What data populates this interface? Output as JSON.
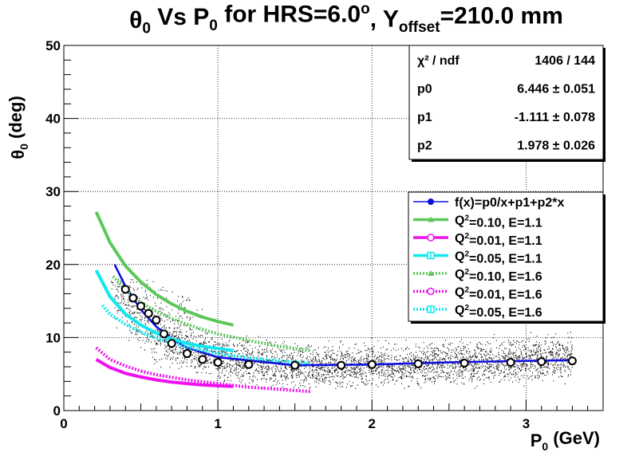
{
  "chart_data": {
    "type": "scatter",
    "title": {
      "parts": [
        "θ",
        "0",
        " Vs P",
        "0",
        " for HRS=6.0",
        "o",
        ", Y",
        "offset",
        "=210.0 mm"
      ]
    },
    "xlabel": {
      "parts": [
        "P",
        "0",
        " (GeV)"
      ]
    },
    "ylabel": {
      "parts": [
        "θ",
        "0",
        " (deg)"
      ]
    },
    "xlim": [
      0,
      3.5
    ],
    "ylim": [
      0,
      50
    ],
    "xticks": [
      "0",
      "1",
      "2",
      "3"
    ],
    "yticks": [
      "0",
      "10",
      "20",
      "30",
      "40",
      "50"
    ],
    "grid": true,
    "stats": {
      "rows": [
        {
          "label": "χ² / ndf",
          "value": "1406 / 144"
        },
        {
          "label": "p0",
          "value": "6.446 ± 0.051"
        },
        {
          "label": "p1",
          "value": "-1.111 ± 0.078"
        },
        {
          "label": "p2",
          "value": "1.978 ± 0.026"
        }
      ]
    },
    "fit": {
      "p0": 6.446,
      "p1": -1.111,
      "p2": 1.978
    },
    "scatter_region": {
      "x_start": 0.3,
      "x_end": 3.3
    },
    "profile_points": {
      "x": [
        0.4,
        0.45,
        0.5,
        0.55,
        0.6,
        0.65,
        0.7,
        0.8,
        0.9,
        1.0,
        1.2,
        1.5,
        1.8,
        2.0,
        2.3,
        2.6,
        2.9,
        3.1,
        3.3
      ],
      "y": [
        16.6,
        15.4,
        14.3,
        13.3,
        12.4,
        10.5,
        9.2,
        7.8,
        7.0,
        6.6,
        6.3,
        6.2,
        6.2,
        6.3,
        6.4,
        6.5,
        6.6,
        6.7,
        6.8
      ]
    },
    "legend": [
      {
        "label": "f(x)=p0/x+p1+p2*x",
        "color": "#1010e0",
        "marker": "circle-filled",
        "dashed": false
      },
      {
        "label": "Q²=0.10, E=1.1",
        "color": "#5cc85c",
        "marker": "triangle",
        "dashed": false
      },
      {
        "label": "Q²=0.01, E=1.1",
        "color": "#ee10ee",
        "marker": "circle-open",
        "dashed": false
      },
      {
        "label": "Q²=0.05, E=1.1",
        "color": "#10e8f0",
        "marker": "plus-square",
        "dashed": false
      },
      {
        "label": "Q²=0.10, E=1.6",
        "color": "#5cc85c",
        "marker": "triangle",
        "dashed": true
      },
      {
        "label": "Q²=0.01, E=1.6",
        "color": "#ee10ee",
        "marker": "circle-open",
        "dashed": true
      },
      {
        "label": "Q²=0.05, E=1.6",
        "color": "#10e8f0",
        "marker": "plus-square",
        "dashed": true
      }
    ],
    "series": [
      {
        "name": "f(x)=p0/x+p1+p2*x",
        "color": "#1010e0",
        "dashed": false,
        "x": [
          0.33,
          0.4,
          0.5,
          0.6,
          0.7,
          0.8,
          1.0,
          1.5,
          2.0,
          2.5,
          3.0,
          3.3
        ],
        "y": [
          20.0,
          17.0,
          13.8,
          11.5,
          9.8,
          8.6,
          7.3,
          6.2,
          6.3,
          6.6,
          6.8,
          6.9
        ]
      },
      {
        "name": "Q²=0.10, E=1.1",
        "color": "#5cc85c",
        "dashed": false,
        "x": [
          0.21,
          0.3,
          0.4,
          0.5,
          0.6,
          0.7,
          0.8,
          0.9,
          1.0,
          1.1
        ],
        "y": [
          27.2,
          23.0,
          19.8,
          17.6,
          15.9,
          14.6,
          13.6,
          12.8,
          12.2,
          11.7
        ]
      },
      {
        "name": "Q²=0.01, E=1.1",
        "color": "#ee10ee",
        "dashed": false,
        "x": [
          0.21,
          0.3,
          0.4,
          0.5,
          0.6,
          0.7,
          0.8,
          0.9,
          1.0,
          1.1
        ],
        "y": [
          7.0,
          5.9,
          5.1,
          4.6,
          4.2,
          3.9,
          3.7,
          3.5,
          3.4,
          3.3
        ]
      },
      {
        "name": "Q²=0.05, E=1.1",
        "color": "#10e8f0",
        "dashed": false,
        "x": [
          0.21,
          0.3,
          0.4,
          0.5,
          0.6,
          0.7,
          0.8,
          0.9,
          1.0,
          1.1
        ],
        "y": [
          19.2,
          15.6,
          13.2,
          11.7,
          10.6,
          9.8,
          9.2,
          8.8,
          8.5,
          8.2
        ]
      },
      {
        "name": "Q²=0.10, E=1.6",
        "color": "#5cc85c",
        "dashed": true,
        "x": [
          0.32,
          0.4,
          0.5,
          0.6,
          0.7,
          0.8,
          0.9,
          1.0,
          1.2,
          1.4,
          1.6
        ],
        "y": [
          18.4,
          16.5,
          14.8,
          13.6,
          12.6,
          11.8,
          11.1,
          10.5,
          9.6,
          8.8,
          8.2
        ]
      },
      {
        "name": "Q²=0.01, E=1.6",
        "color": "#ee10ee",
        "dashed": true,
        "x": [
          0.21,
          0.3,
          0.4,
          0.5,
          0.6,
          0.8,
          1.0,
          1.2,
          1.4,
          1.6
        ],
        "y": [
          8.6,
          7.0,
          6.1,
          5.4,
          4.9,
          4.2,
          3.7,
          3.2,
          2.9,
          2.6
        ]
      },
      {
        "name": "Q²=0.05, E=1.6",
        "color": "#10e8f0",
        "dashed": true,
        "x": [
          0.25,
          0.3,
          0.4,
          0.5,
          0.6,
          0.8,
          1.0,
          1.2,
          1.4,
          1.6
        ],
        "y": [
          14.4,
          13.2,
          11.8,
          10.7,
          9.9,
          8.7,
          7.8,
          7.2,
          6.8,
          6.5
        ]
      }
    ]
  }
}
